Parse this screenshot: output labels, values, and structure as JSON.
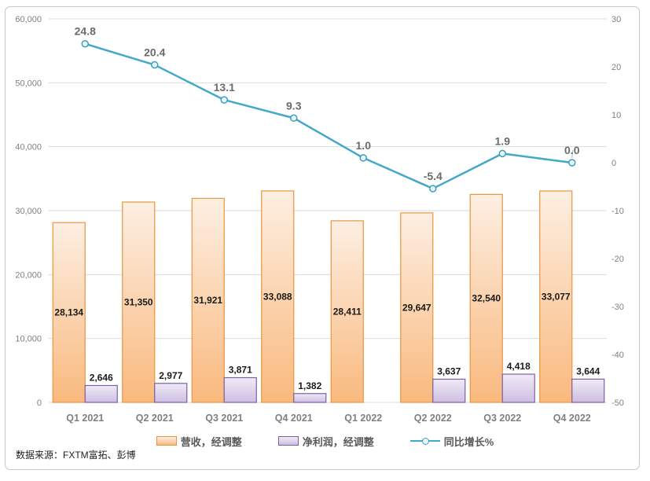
{
  "chart_data": {
    "type": "combo",
    "title": "",
    "categories": [
      "Q1 2021",
      "Q2 2021",
      "Q3 2021",
      "Q4 2021",
      "Q1 2022",
      "Q2 2022",
      "Q3 2022",
      "Q4 2022"
    ],
    "series": [
      {
        "name": "营收，经调整",
        "type": "bar",
        "axis": "left",
        "values": [
          28134,
          31350,
          31921,
          33088,
          28411,
          29647,
          32540,
          33077
        ],
        "labels": [
          "28,134",
          "31,350",
          "31,921",
          "33,088",
          "28,411",
          "29,647",
          "32,540",
          "33,077"
        ],
        "fill_top": "#FDEFE2",
        "fill_bottom": "#F9B97E",
        "border": "#E8953F"
      },
      {
        "name": "净利润，经调整",
        "type": "bar",
        "axis": "left",
        "values": [
          2646,
          2977,
          3871,
          1382,
          null,
          3637,
          4418,
          3644
        ],
        "labels": [
          "2,646",
          "2,977",
          "3,871",
          "1,382",
          "",
          "3,637",
          "4,418",
          "3,644"
        ],
        "fill_top": "#F0EBF7",
        "fill_bottom": "#CDBEE1",
        "border": "#7E60A2"
      },
      {
        "name": "同比增长%",
        "type": "line",
        "axis": "right",
        "values": [
          24.8,
          20.4,
          13.1,
          9.3,
          1.0,
          -5.4,
          1.9,
          0.0
        ],
        "labels": [
          "24.8",
          "20.4",
          "13.1",
          "9.3",
          "1.0",
          "-5.4",
          "1.9",
          "0.0"
        ],
        "color": "#44A8C8",
        "marker_fill": "#E9F6FA",
        "marker_border": "#3D9FBE",
        "label_leader_last": true
      }
    ],
    "left_axis": {
      "min": 0,
      "max": 60000,
      "tick_labels": [
        "60,000",
        "50,000",
        "40,000",
        "30,000",
        "20,000",
        "10,000",
        "0"
      ]
    },
    "right_axis": {
      "min": -50,
      "max": 30,
      "tick_labels": [
        "30",
        "20",
        "10",
        "0",
        "-10",
        "-20",
        "-30",
        "-40",
        "-50"
      ]
    },
    "grid": true,
    "gridline_color": "#D9D9D9",
    "axis_text_color": "#7F7F7F",
    "category_text_color": "#7F7F7F",
    "bar_label_color": "#1A1A1A",
    "line_label_color": "#6B6B6B",
    "legend_position": "bottom"
  },
  "source_note": "数据来源：FXTM富拓、彭博"
}
